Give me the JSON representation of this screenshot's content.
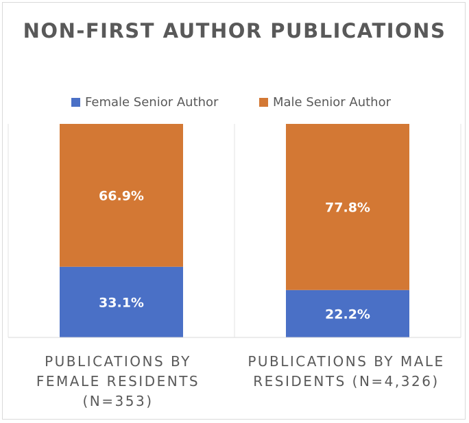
{
  "chart_data": {
    "type": "bar",
    "stacked": true,
    "percent_stacked": true,
    "title": "NON-FIRST AUTHOR PUBLICATIONS",
    "categories": [
      "PUBLICATIONS BY\nFEMALE RESIDENTS\n(N=353)",
      "PUBLICATIONS BY MALE\nRESIDENTS (N=4,326)"
    ],
    "series": [
      {
        "name": "Female Senior Author",
        "color": "#4a70c6",
        "values": [
          33.1,
          22.2
        ],
        "labels": [
          "33.1%",
          "22.2%"
        ]
      },
      {
        "name": "Male Senior Author",
        "color": "#d37834",
        "values": [
          66.9,
          77.8
        ],
        "labels": [
          "66.9%",
          "77.8%"
        ]
      }
    ],
    "ylim": [
      0,
      100
    ],
    "grid": false,
    "legend_position": "top",
    "xlabel": "",
    "ylabel": ""
  }
}
